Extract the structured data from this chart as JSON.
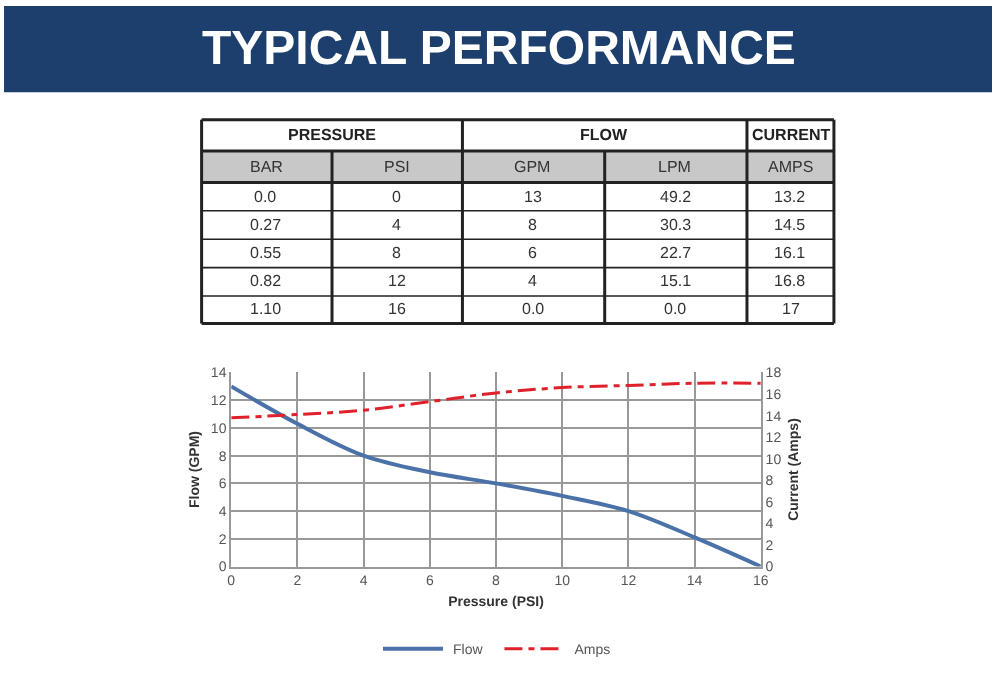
{
  "chart_data": [
    {
      "type": "other",
      "title": "TYPICAL PERFORMANCE",
      "color": "#1d3f6e",
      "annotations": [
        "PRESSURE",
        "FLOW",
        "CURRENT",
        "BAR",
        "PSI",
        "GPM",
        "LPM",
        "AMPS",
        "0.0",
        "0",
        "13",
        "49.2",
        "13.2",
        "0.27",
        "4",
        "8",
        "30.3",
        "14.5",
        "0.55",
        "8",
        "6",
        "22.7",
        "16.1",
        "0.82",
        "12",
        "4",
        "15.1",
        "16.8",
        "1.10",
        "16",
        "0.0",
        "0.0",
        "17"
      ]
    },
    {
      "type": "line",
      "xlabel": "Pressure (PSI)",
      "ylabel": "Flow (GPM)",
      "y2label": "Current (Amps)",
      "x": [
        0,
        2,
        4,
        6,
        8,
        10,
        12,
        14,
        16
      ],
      "series": [
        {
          "name": "Flow",
          "color": "#4a72a8",
          "line_style": "solid",
          "values": [
            13,
            10.3,
            8,
            6.8,
            6,
            5.1,
            4,
            2.1,
            0
          ]
        },
        {
          "name": "Amps",
          "color": "#e0202a",
          "line_style": "dashed",
          "axis": "y2",
          "values": [
            13.8,
            14.1,
            14.5,
            15.3,
            16.1,
            16.6,
            16.8,
            17.0,
            17.0
          ]
        }
      ],
      "xlim": [
        0,
        16
      ],
      "xticks": [
        0,
        2,
        4,
        6,
        8,
        10,
        12,
        14,
        16
      ],
      "ylim": [
        0,
        14
      ],
      "yticks": [
        0,
        2,
        4,
        6,
        8,
        10,
        12,
        14
      ],
      "y2lim": [
        0,
        18
      ],
      "y2ticks": [
        0,
        2,
        4,
        6,
        8,
        10,
        12,
        14,
        16,
        18
      ],
      "grid": true,
      "legend": "bottom",
      "marker": "none"
    }
  ]
}
